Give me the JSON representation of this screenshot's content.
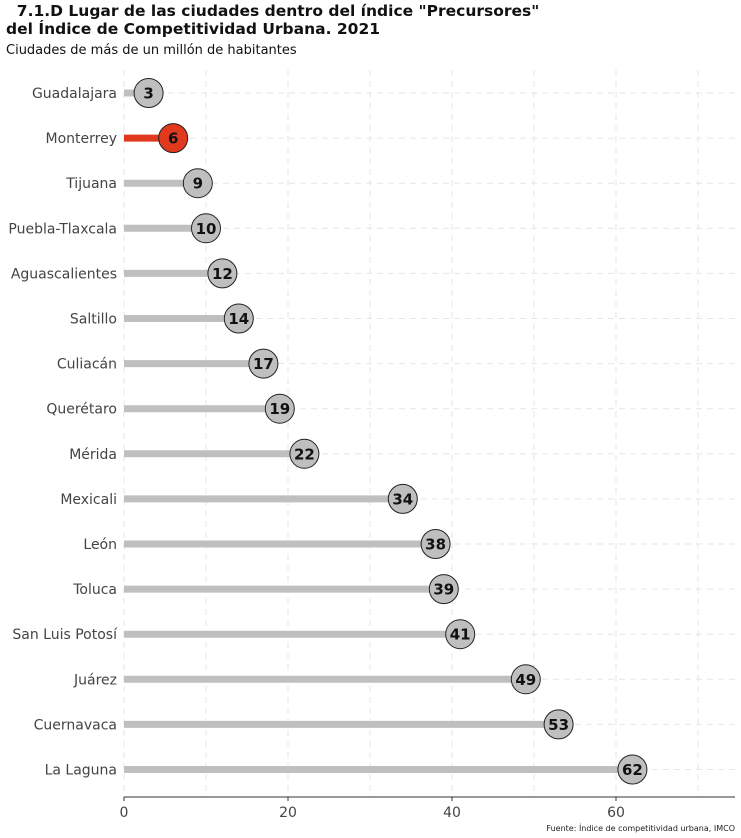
{
  "title_lines": [
    "  7.1.D Lugar de las ciudades dentro del índice \"Precursores\"",
    "del Índice de Competitividad Urbana. 2021"
  ],
  "subtitle": "Ciudades de más de un millón de habitantes",
  "source": "Fuente: Índice de competitividad urbana, IMCO",
  "colors": {
    "default": "#bfbfbf",
    "highlight": "#e0391e",
    "grid": "#e6e6e6"
  },
  "chart_data": {
    "type": "lollipop",
    "highlight": "Monterrey",
    "categories": [
      "Guadalajara",
      "Monterrey",
      "Tijuana",
      "Puebla-Tlaxcala",
      "Aguascalientes",
      "Saltillo",
      "Culiacán",
      "Querétaro",
      "Mérida",
      "Mexicali",
      "León",
      "Toluca",
      "San Luis Potosí",
      "Juárez",
      "Cuernavaca",
      "La Laguna"
    ],
    "values": [
      3,
      6,
      9,
      10,
      12,
      14,
      17,
      19,
      22,
      34,
      38,
      39,
      41,
      49,
      53,
      62
    ],
    "labels": [
      "3",
      "6",
      "9",
      "10",
      "12",
      "14",
      "17",
      "19",
      "22",
      "34",
      "38",
      "39",
      "41",
      "49",
      "53",
      "62"
    ],
    "x_ticks": [
      0,
      20,
      40,
      60
    ],
    "x_tick_labels": [
      "0",
      "20",
      "40",
      "60"
    ],
    "xlim": [
      0,
      71
    ],
    "grid": true
  }
}
